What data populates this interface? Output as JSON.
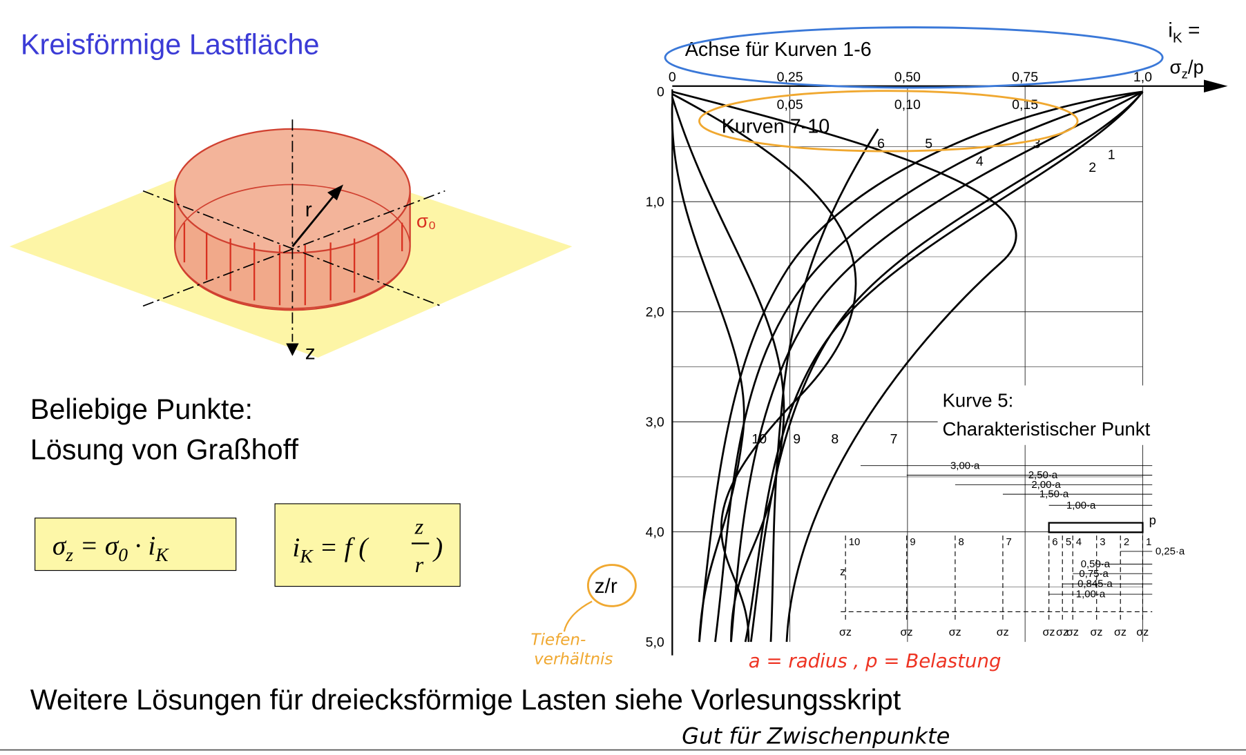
{
  "title": "Kreisförmige Lastfläche",
  "figure": {
    "radius": "r",
    "stress": "σ₀",
    "depth": "z"
  },
  "text": {
    "line1": "Beliebige Punkte:",
    "line2": "Lösung von Graßhoff"
  },
  "formula1": [
    "σ",
    "z",
    " = σ",
    "0",
    " · i",
    "K"
  ],
  "formula2": [
    "i",
    "K",
    " = f (",
    "z",
    "r",
    ")"
  ],
  "diagram": {
    "axis_label_1": "Achse für Kurven 1-6",
    "axis_label_2": "Kurven 7-10",
    "ik_label": [
      "i",
      "K",
      " ="
    ],
    "ratio_label": [
      "σ",
      "z",
      "/p"
    ],
    "xticks_1": [
      "0",
      "0,25",
      "0,50",
      "0,75",
      "1,0"
    ],
    "xticks_2": [
      "0,05",
      "0,10",
      "0,15"
    ],
    "yticks": [
      "0",
      "1,0",
      "2,0",
      "3,0",
      "4,0",
      "5,0"
    ],
    "curves": [
      "1",
      "2",
      "3",
      "4",
      "5",
      "6",
      "7",
      "8",
      "9",
      "10"
    ],
    "note": [
      "Kurve 5:",
      "Charakteristischer Punkt"
    ],
    "inset_top": [
      "3,00·a",
      "2,50·a",
      "2,00·a",
      "1,50·a",
      "1,00·a"
    ],
    "inset_bottom": [
      "0,25·a",
      "0,50·a",
      "0,75·a",
      "0,845·a",
      "1,00·a"
    ],
    "inset_points": [
      "10",
      "9",
      "8",
      "7",
      "6",
      "5",
      "4",
      "3",
      "2",
      "1"
    ],
    "inset_load": "p",
    "inset_depth": "z",
    "inset_stress": "σz",
    "y_label": "z/r"
  },
  "annotations": {
    "depth_ratio": [
      "Tiefen-",
      "verhältnis"
    ],
    "legend": "a = radius ,  p = Belastung",
    "note": "Gut für Zwischenpunkte"
  },
  "footer": "Weitere Lösungen für dreiecksförmige Lasten siehe Vorlesungsskript"
}
